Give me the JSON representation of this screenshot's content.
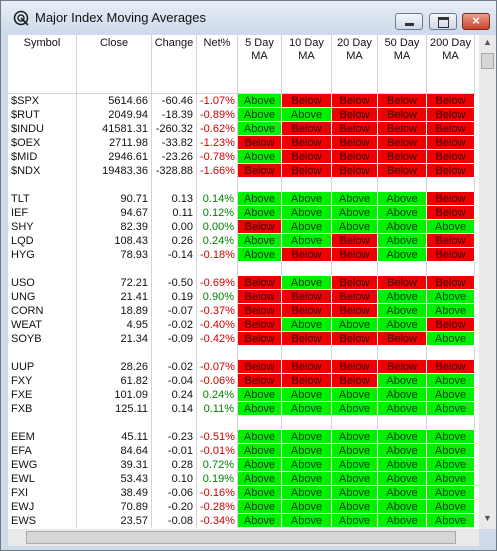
{
  "window": {
    "title": "Major Index Moving Averages"
  },
  "table": {
    "headers": [
      [
        "Symbol"
      ],
      [
        "Close"
      ],
      [
        "Change"
      ],
      [
        "Net%"
      ],
      [
        "5 Day",
        "MA"
      ],
      [
        "10 Day",
        "MA"
      ],
      [
        "20 Day",
        "MA"
      ],
      [
        "50 Day",
        "MA"
      ],
      [
        "200 Day",
        "MA"
      ]
    ],
    "groups": [
      [
        [
          "$SPX",
          "5614.66",
          "-60.46",
          "-1.07%",
          "Above",
          "Below",
          "Below",
          "Below",
          "Below"
        ],
        [
          "$RUT",
          "2049.94",
          "-18.39",
          "-0.89%",
          "Above",
          "Above",
          "Below",
          "Below",
          "Below"
        ],
        [
          "$INDU",
          "41581.31",
          "-260.32",
          "-0.62%",
          "Above",
          "Below",
          "Below",
          "Below",
          "Below"
        ],
        [
          "$OEX",
          "2711.98",
          "-33.82",
          "-1.23%",
          "Below",
          "Below",
          "Below",
          "Below",
          "Below"
        ],
        [
          "$MID",
          "2946.61",
          "-23.26",
          "-0.78%",
          "Above",
          "Below",
          "Below",
          "Below",
          "Below"
        ],
        [
          "$NDX",
          "19483.36",
          "-328.88",
          "-1.66%",
          "Below",
          "Below",
          "Below",
          "Below",
          "Below"
        ]
      ],
      [
        [
          "TLT",
          "90.71",
          "0.13",
          "0.14%",
          "Above",
          "Above",
          "Above",
          "Above",
          "Below"
        ],
        [
          "IEF",
          "94.67",
          "0.11",
          "0.12%",
          "Above",
          "Above",
          "Above",
          "Above",
          "Below"
        ],
        [
          "SHY",
          "82.39",
          "0.00",
          "0.00%",
          "Below",
          "Above",
          "Above",
          "Above",
          "Above"
        ],
        [
          "LQD",
          "108.43",
          "0.26",
          "0.24%",
          "Above",
          "Above",
          "Below",
          "Above",
          "Below"
        ],
        [
          "HYG",
          "78.93",
          "-0.14",
          "-0.18%",
          "Above",
          "Below",
          "Below",
          "Above",
          "Below"
        ]
      ],
      [
        [
          "USO",
          "72.21",
          "-0.50",
          "-0.69%",
          "Below",
          "Above",
          "Below",
          "Below",
          "Below"
        ],
        [
          "UNG",
          "21.41",
          "0.19",
          "0.90%",
          "Below",
          "Below",
          "Below",
          "Above",
          "Above"
        ],
        [
          "CORN",
          "18.89",
          "-0.07",
          "-0.37%",
          "Below",
          "Below",
          "Below",
          "Above",
          "Above"
        ],
        [
          "WEAT",
          "4.95",
          "-0.02",
          "-0.40%",
          "Below",
          "Above",
          "Above",
          "Above",
          "Below"
        ],
        [
          "SOYB",
          "21.34",
          "-0.09",
          "-0.42%",
          "Below",
          "Below",
          "Below",
          "Below",
          "Above"
        ]
      ],
      [
        [
          "UUP",
          "28.26",
          "-0.02",
          "-0.07%",
          "Below",
          "Below",
          "Below",
          "Below",
          "Below"
        ],
        [
          "FXY",
          "61.82",
          "-0.04",
          "-0.06%",
          "Below",
          "Below",
          "Below",
          "Above",
          "Above"
        ],
        [
          "FXE",
          "101.09",
          "0.24",
          "0.24%",
          "Above",
          "Above",
          "Above",
          "Above",
          "Above"
        ],
        [
          "FXB",
          "125.11",
          "0.14",
          "0.11%",
          "Above",
          "Above",
          "Above",
          "Above",
          "Above"
        ]
      ],
      [
        [
          "EEM",
          "45.11",
          "-0.23",
          "-0.51%",
          "Above",
          "Above",
          "Above",
          "Above",
          "Above"
        ],
        [
          "EFA",
          "84.64",
          "-0.01",
          "-0.01%",
          "Above",
          "Above",
          "Above",
          "Above",
          "Above"
        ],
        [
          "EWG",
          "39.31",
          "0.28",
          "0.72%",
          "Above",
          "Above",
          "Above",
          "Above",
          "Above"
        ],
        [
          "EWL",
          "53.43",
          "0.10",
          "0.19%",
          "Above",
          "Above",
          "Above",
          "Above",
          "Above"
        ],
        [
          "FXI",
          "38.49",
          "-0.06",
          "-0.16%",
          "Above",
          "Above",
          "Above",
          "Above",
          "Above"
        ],
        [
          "EWJ",
          "70.89",
          "-0.20",
          "-0.28%",
          "Above",
          "Above",
          "Above",
          "Above",
          "Above"
        ],
        [
          "EWS",
          "23.57",
          "-0.08",
          "-0.34%",
          "Above",
          "Above",
          "Above",
          "Above",
          "Above"
        ]
      ]
    ]
  }
}
